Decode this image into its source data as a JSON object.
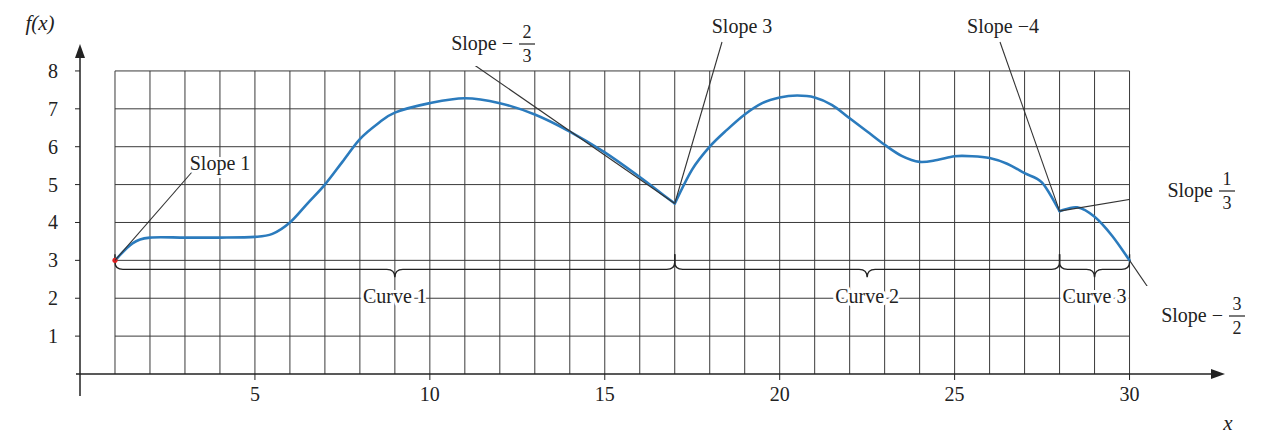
{
  "chart_data": {
    "type": "line",
    "xlabel": "x",
    "ylabel": "f(x)",
    "xlim": [
      0,
      32.5
    ],
    "ylim": [
      0,
      8.5
    ],
    "xticks": [
      5,
      10,
      15,
      20,
      25,
      30
    ],
    "yticks": [
      1,
      2,
      3,
      4,
      5,
      6,
      7,
      8
    ],
    "x_grid": [
      1,
      2,
      3,
      4,
      5,
      6,
      7,
      8,
      9,
      10,
      11,
      12,
      13,
      14,
      15,
      16,
      17,
      18,
      19,
      20,
      21,
      22,
      23,
      24,
      25,
      26,
      27,
      28,
      29,
      30
    ],
    "grid": true,
    "series": [
      {
        "color": "#2b7bbd",
        "x": [
          1,
          1.5,
          2,
          3,
          4,
          5,
          5.5,
          6,
          6.5,
          7,
          7.5,
          8,
          8.5,
          9,
          10,
          11,
          12,
          13,
          14,
          15,
          16,
          16.5,
          17
        ],
        "values": [
          3,
          3.45,
          3.6,
          3.6,
          3.6,
          3.62,
          3.7,
          4.0,
          4.5,
          5.0,
          5.6,
          6.2,
          6.6,
          6.9,
          7.15,
          7.28,
          7.15,
          6.85,
          6.4,
          5.85,
          5.2,
          4.85,
          4.5
        ]
      },
      {
        "color": "#2b7bbd",
        "x": [
          17,
          17.5,
          18,
          18.5,
          19,
          19.5,
          20,
          20.5,
          21,
          21.5,
          22,
          22.5,
          23,
          23.5,
          24,
          24.5,
          25,
          25.5,
          26,
          26.5,
          27,
          27.5,
          28
        ],
        "values": [
          4.5,
          5.4,
          6.0,
          6.45,
          6.85,
          7.15,
          7.3,
          7.35,
          7.3,
          7.1,
          6.75,
          6.4,
          6.05,
          5.75,
          5.6,
          5.65,
          5.75,
          5.75,
          5.7,
          5.55,
          5.3,
          5.05,
          4.3
        ]
      },
      {
        "color": "#2b7bbd",
        "x": [
          28,
          28.5,
          29,
          29.5,
          30
        ],
        "values": [
          4.3,
          4.4,
          4.15,
          3.65,
          3.0
        ]
      }
    ],
    "start_point": {
      "x": 1,
      "y": 3,
      "color": "#e02020"
    },
    "annotations": [
      {
        "text": "Slope 1",
        "x": 1,
        "y": 3
      },
      {
        "text": "Slope −",
        "numerator": "2",
        "denominator": "3",
        "x": 17,
        "y": 4.5
      },
      {
        "text": "Slope 3",
        "x": 17,
        "y": 4.5
      },
      {
        "text": "Slope −4",
        "x": 28,
        "y": 4.3
      },
      {
        "text": "Slope",
        "numerator": "1",
        "denominator": "3",
        "x": 28,
        "y": 4.3
      },
      {
        "text": "Slope −",
        "numerator": "3",
        "denominator": "2",
        "x": 30,
        "y": 3
      }
    ],
    "curve_labels": [
      {
        "text": "Curve 1",
        "from": 1,
        "to": 17
      },
      {
        "text": "Curve 2",
        "from": 17,
        "to": 28
      },
      {
        "text": "Curve 3",
        "from": 28,
        "to": 30
      }
    ]
  }
}
